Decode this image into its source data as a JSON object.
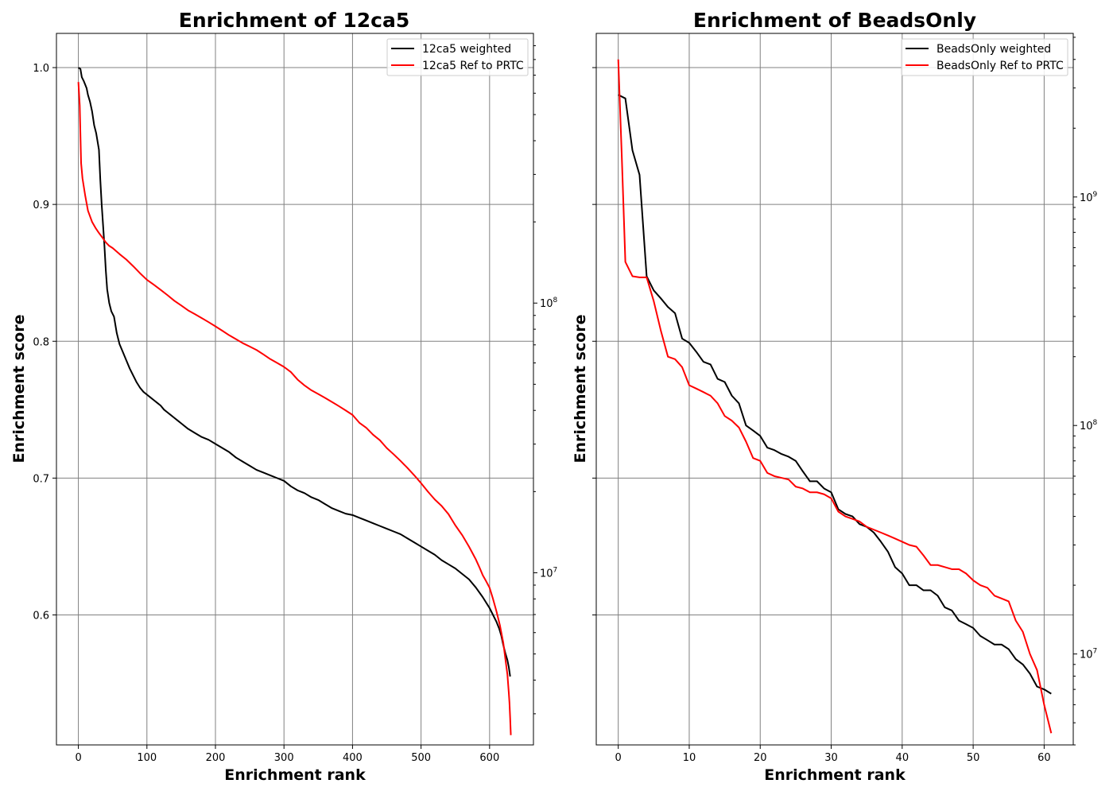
{
  "chart_data": [
    {
      "type": "line",
      "title": "Enrichment of 12ca5",
      "xlabel": "Enrichment rank",
      "ylabel": "Enrichment score",
      "xlim": [
        -32,
        664
      ],
      "ylim": [
        0.505,
        1.025
      ],
      "xticks": [
        0,
        100,
        200,
        300,
        400,
        500,
        600
      ],
      "yticks": [
        0.6,
        0.7,
        0.8,
        0.9,
        1.0
      ],
      "y_right": {
        "scale": "log",
        "labeled_ticks": [
          10000000,
          100000000
        ]
      },
      "grid": true,
      "legend": "top-right",
      "series": [
        {
          "name": "12ca5 weighted",
          "color": "#000000",
          "axis": "left",
          "x": [
            0,
            3,
            5,
            8,
            12,
            14,
            17,
            20,
            23,
            26,
            30,
            32,
            34,
            36,
            38,
            40,
            42,
            45,
            48,
            52,
            56,
            60,
            65,
            70,
            75,
            80,
            85,
            90,
            95,
            100,
            105,
            110,
            115,
            120,
            125,
            130,
            135,
            140,
            145,
            150,
            160,
            170,
            180,
            190,
            200,
            210,
            220,
            230,
            240,
            250,
            260,
            270,
            280,
            290,
            300,
            310,
            320,
            330,
            340,
            350,
            360,
            370,
            380,
            390,
            400,
            410,
            420,
            430,
            440,
            450,
            460,
            470,
            480,
            490,
            500,
            510,
            520,
            530,
            540,
            550,
            560,
            570,
            580,
            590,
            600,
            605,
            610,
            614,
            617,
            620,
            623,
            626,
            628,
            630
          ],
          "values": [
            1.0,
            0.999,
            0.993,
            0.99,
            0.985,
            0.98,
            0.975,
            0.968,
            0.958,
            0.952,
            0.94,
            0.918,
            0.9,
            0.885,
            0.87,
            0.852,
            0.838,
            0.828,
            0.822,
            0.818,
            0.806,
            0.798,
            0.792,
            0.786,
            0.78,
            0.775,
            0.77,
            0.766,
            0.763,
            0.761,
            0.759,
            0.757,
            0.755,
            0.753,
            0.75,
            0.748,
            0.746,
            0.744,
            0.742,
            0.74,
            0.736,
            0.733,
            0.73,
            0.728,
            0.725,
            0.722,
            0.719,
            0.715,
            0.712,
            0.709,
            0.706,
            0.704,
            0.702,
            0.7,
            0.698,
            0.694,
            0.691,
            0.689,
            0.686,
            0.684,
            0.681,
            0.678,
            0.676,
            0.674,
            0.673,
            0.671,
            0.669,
            0.667,
            0.665,
            0.663,
            0.661,
            0.659,
            0.656,
            0.653,
            0.65,
            0.647,
            0.644,
            0.64,
            0.637,
            0.634,
            0.63,
            0.626,
            0.62,
            0.613,
            0.605,
            0.6,
            0.595,
            0.59,
            0.585,
            0.578,
            0.572,
            0.567,
            0.562,
            0.555
          ]
        },
        {
          "name": "12ca5 Ref to PRTC",
          "color": "#ff0000",
          "axis": "right",
          "x": [
            0,
            2,
            3,
            4,
            6,
            10,
            14,
            20,
            25,
            30,
            35,
            40,
            45,
            50,
            60,
            70,
            80,
            90,
            100,
            110,
            120,
            130,
            140,
            150,
            160,
            170,
            180,
            190,
            200,
            210,
            220,
            230,
            240,
            250,
            260,
            270,
            280,
            290,
            300,
            310,
            320,
            330,
            340,
            350,
            360,
            370,
            380,
            390,
            400,
            410,
            420,
            430,
            440,
            450,
            460,
            470,
            480,
            490,
            500,
            510,
            520,
            530,
            540,
            550,
            560,
            570,
            580,
            585,
            590,
            595,
            600,
            605,
            610,
            615,
            620,
            623,
            626,
            628,
            629,
            630,
            631
          ],
          "values": [
            660000000,
            540000000,
            420000000,
            330000000,
            290000000,
            250000000,
            220000000,
            200000000,
            190000000,
            182000000,
            175000000,
            168000000,
            163000000,
            160000000,
            152000000,
            145000000,
            137000000,
            129000000,
            122000000,
            117000000,
            112000000,
            107000000,
            102000000,
            98000000,
            94000000,
            91000000,
            88000000,
            85000000,
            82000000,
            79000000,
            76000000,
            73500000,
            71000000,
            69000000,
            67000000,
            64500000,
            62000000,
            60000000,
            58000000,
            55500000,
            52000000,
            49500000,
            47500000,
            46000000,
            44500000,
            43000000,
            41500000,
            40000000,
            38500000,
            36000000,
            34500000,
            32500000,
            31000000,
            29000000,
            27500000,
            26000000,
            24500000,
            23000000,
            21500000,
            20000000,
            18700000,
            17700000,
            16500000,
            15000000,
            13800000,
            12500000,
            11200000,
            10500000,
            9800000,
            9300000,
            8800000,
            8000000,
            7200000,
            6400000,
            5500000,
            4800000,
            4200000,
            3600000,
            3300000,
            2900000,
            2500000
          ]
        }
      ]
    },
    {
      "type": "line",
      "title": "Enrichment of BeadsOnly",
      "xlabel": "Enrichment rank",
      "ylabel": "Enrichment score",
      "xlim": [
        -3.1,
        64.1
      ],
      "ylim": [
        0.505,
        1.025
      ],
      "xticks": [
        0,
        10,
        20,
        30,
        40,
        50,
        60
      ],
      "yticks": [
        0.6,
        0.7,
        0.8,
        0.9,
        1.0
      ],
      "y_right": {
        "scale": "log",
        "labeled_ticks": [
          10000000,
          100000000,
          1000000000
        ]
      },
      "grid": true,
      "legend": "top-right",
      "series": [
        {
          "name": "BeadsOnly weighted",
          "color": "#000000",
          "axis": "right",
          "x": [
            0,
            1,
            2,
            3,
            4,
            5,
            6,
            7,
            8,
            9,
            10,
            11,
            12,
            13,
            14,
            15,
            16,
            17,
            18,
            19,
            20,
            21,
            22,
            23,
            24,
            25,
            26,
            27,
            28,
            29,
            30,
            31,
            32,
            33,
            34,
            35,
            36,
            37,
            38,
            39,
            40,
            41,
            42,
            43,
            44,
            45,
            46,
            47,
            48,
            49,
            50,
            51,
            52,
            53,
            54,
            55,
            56,
            57,
            58,
            59,
            60,
            61
          ],
          "values": [
            2800000000,
            2700000000,
            1600000000,
            1250000000,
            450000000,
            390000000,
            360000000,
            330000000,
            310000000,
            240000000,
            230000000,
            210000000,
            190000000,
            185000000,
            160000000,
            155000000,
            135000000,
            125000000,
            100000000,
            95000000,
            90000000,
            80000000,
            78000000,
            75000000,
            73000000,
            70000000,
            63000000,
            57000000,
            57000000,
            53000000,
            51000000,
            43000000,
            41000000,
            40000000,
            37000000,
            36000000,
            34000000,
            31000000,
            28000000,
            24000000,
            22500000,
            20000000,
            20000000,
            19000000,
            19000000,
            18000000,
            16000000,
            15500000,
            14000000,
            13500000,
            13000000,
            12000000,
            11500000,
            11000000,
            11000000,
            10500000,
            9500000,
            9000000,
            8200000,
            7200000,
            7000000,
            6700000
          ]
        },
        {
          "name": "BeadsOnly Ref to PRTC",
          "color": "#ff0000",
          "axis": "right",
          "x": [
            0,
            0.5,
            1,
            2,
            3,
            4,
            5,
            6,
            7,
            8,
            9,
            10,
            11,
            12,
            13,
            14,
            15,
            16,
            17,
            18,
            19,
            20,
            21,
            22,
            23,
            24,
            25,
            26,
            27,
            28,
            29,
            30,
            31,
            32,
            33,
            34,
            35,
            36,
            37,
            38,
            39,
            40,
            41,
            42,
            43,
            44,
            45,
            46,
            47,
            48,
            49,
            50,
            51,
            52,
            53,
            54,
            55,
            56,
            57,
            58,
            59,
            60,
            61
          ],
          "values": [
            4000000000,
            1500000000,
            520000000,
            450000000,
            445000000,
            445000000,
            350000000,
            260000000,
            200000000,
            195000000,
            180000000,
            150000000,
            145000000,
            140000000,
            135000000,
            125000000,
            110000000,
            105000000,
            98000000,
            85000000,
            72000000,
            70000000,
            62000000,
            60000000,
            59000000,
            58000000,
            54000000,
            53000000,
            51000000,
            51000000,
            50000000,
            48000000,
            42000000,
            40000000,
            39000000,
            38000000,
            36000000,
            35000000,
            34000000,
            33000000,
            32000000,
            31000000,
            30000000,
            29500000,
            27000000,
            24500000,
            24500000,
            24000000,
            23500000,
            23500000,
            22500000,
            21000000,
            20000000,
            19500000,
            18000000,
            17500000,
            17000000,
            14000000,
            12500000,
            10000000,
            8500000,
            6000000,
            4500000
          ]
        }
      ]
    }
  ]
}
